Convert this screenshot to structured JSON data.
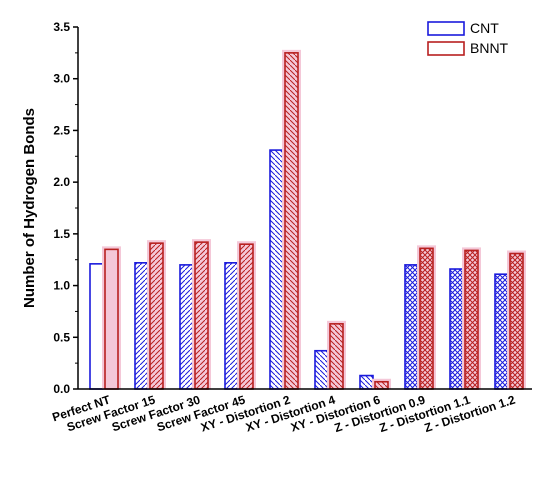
{
  "chart_data": {
    "type": "bar",
    "title": "",
    "xlabel": "",
    "ylabel": "Number of Hydrogen Bonds",
    "ylim": [
      0,
      3.5
    ],
    "yticks": [
      0.0,
      0.5,
      1.0,
      1.5,
      2.0,
      2.5,
      3.0,
      3.5
    ],
    "ytick_labels": [
      "0.0",
      "0.5",
      "1.0",
      "1.5",
      "2.0",
      "2.5",
      "3.0",
      "3.5"
    ],
    "grid": false,
    "legend_position": "top-right",
    "categories": [
      "Perfect NT",
      "Screw Factor 15",
      "Screw Factor 30",
      "Screw Factor 45",
      "XY - Distortion 2",
      "XY - Distortion  4",
      "XY - Distortion  6",
      "Z - Distortion 0.9",
      "Z - Distortion 1.1",
      "Z - Distortion 1.2"
    ],
    "series": [
      {
        "name": "CNT",
        "color": "#1a1adc",
        "values": [
          1.21,
          1.22,
          1.2,
          1.22,
          2.31,
          0.37,
          0.13,
          1.2,
          1.16,
          1.11
        ]
      },
      {
        "name": "BNNT",
        "color": "#b82020",
        "values": [
          1.35,
          1.41,
          1.42,
          1.4,
          3.25,
          0.63,
          0.07,
          1.36,
          1.34,
          1.31
        ]
      }
    ],
    "patterns": [
      "none",
      "diag-right",
      "diag-right",
      "diag-right",
      "diag-left",
      "diag-left",
      "diag-left",
      "cross",
      "cross",
      "cross"
    ],
    "highlight_color": "#f4c8d8"
  }
}
